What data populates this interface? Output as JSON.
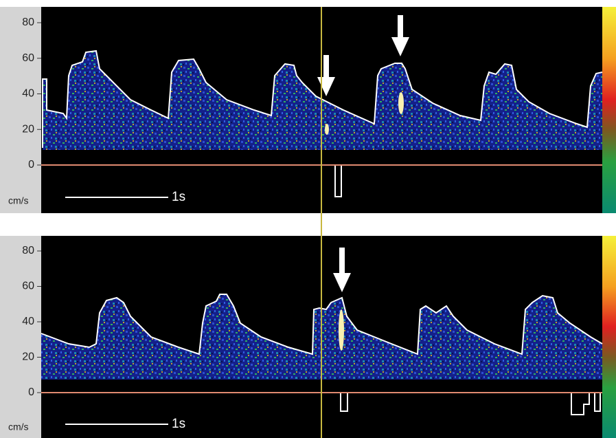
{
  "panels": [
    {
      "yticks": [
        0,
        20,
        40,
        60,
        80
      ],
      "unit": "cm/s",
      "scale_label": "1s"
    },
    {
      "yticks": [
        0,
        20,
        40,
        60,
        80
      ],
      "unit": "cm/s",
      "scale_label": "1s"
    }
  ]
}
